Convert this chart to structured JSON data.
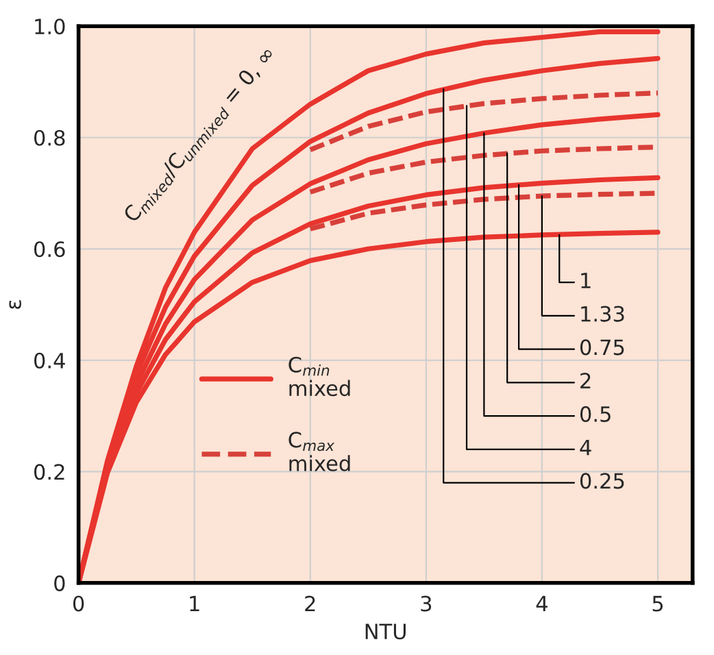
{
  "chart_data": {
    "type": "line",
    "xlabel": "NTU",
    "ylabel": "ε",
    "xlim": [
      0,
      5.3
    ],
    "ylim": [
      0,
      1.0
    ],
    "xticks": [
      0,
      1,
      2,
      3,
      4,
      5
    ],
    "yticks": [
      0,
      0.2,
      0.4,
      0.6,
      0.8,
      {
        "value": 1.0,
        "label": "1.0"
      }
    ],
    "grid": true,
    "legend": "left",
    "marker": "none",
    "x": [
      0,
      0.25,
      0.5,
      0.75,
      1,
      1.5,
      2,
      2.5,
      3,
      3.5,
      4,
      4.5,
      5
    ],
    "series": [
      {
        "name": "C$_{min}$\nmixed",
        "color": "#e8352e",
        "line_style": "solid",
        "values": [
          0,
          0.22,
          0.39,
          0.53,
          0.63,
          0.78,
          0.86,
          0.92,
          0.95,
          0.97,
          0.98,
          0.99,
          0.99
        ]
      },
      {
        "color": "#e8352e",
        "line_style": "solid",
        "values": [
          0,
          0.215,
          0.375,
          0.495,
          0.587,
          0.714,
          0.793,
          0.844,
          0.879,
          0.903,
          0.92,
          0.933,
          0.942
        ]
      },
      {
        "color": "#e8352e",
        "line_style": "solid",
        "values": [
          0,
          0.209,
          0.357,
          0.465,
          0.545,
          0.652,
          0.717,
          0.76,
          0.789,
          0.808,
          0.823,
          0.833,
          0.841
        ]
      },
      {
        "color": "#e8352e",
        "line_style": "solid",
        "values": [
          0,
          0.204,
          0.341,
          0.437,
          0.505,
          0.593,
          0.645,
          0.677,
          0.697,
          0.71,
          0.718,
          0.724,
          0.728
        ]
      },
      {
        "color": "#e8352e",
        "line_style": "solid",
        "values": [
          0,
          0.198,
          0.325,
          0.41,
          0.469,
          0.54,
          0.579,
          0.6,
          0.613,
          0.621,
          0.625,
          0.628,
          0.63
        ]
      },
      {
        "name": "C$_{max}$\nmixed",
        "color": "#d8403a",
        "line_style": "dashed",
        "x": [
          2,
          2.5,
          3,
          3.5,
          4,
          4.5,
          5
        ],
        "values": [
          0.778,
          0.82,
          0.846,
          0.861,
          0.87,
          0.876,
          0.88
        ]
      },
      {
        "color": "#d8403a",
        "line_style": "dashed",
        "x": [
          2,
          2.5,
          3,
          3.5,
          4,
          4.5,
          5
        ],
        "values": [
          0.702,
          0.736,
          0.756,
          0.768,
          0.776,
          0.78,
          0.783
        ]
      },
      {
        "color": "#d8403a",
        "line_style": "dashed",
        "x": [
          2,
          2.5,
          3,
          3.5,
          4,
          4.5,
          5
        ],
        "values": [
          0.636,
          0.664,
          0.679,
          0.689,
          0.695,
          0.698,
          0.7
        ]
      }
    ],
    "annotations": [
      "C$_{mixed}$/C$_{unmixed}$ = 0, ∞",
      {
        "text": "1",
        "x": 4.15,
        "y": 0.625
      },
      {
        "text": "1.33",
        "x": 4.0,
        "y": 0.695
      },
      {
        "text": "0.75",
        "x": 3.8,
        "y": 0.715
      },
      {
        "text": "2",
        "x": 3.7,
        "y": 0.772
      },
      {
        "text": "0.5",
        "x": 3.5,
        "y": 0.808
      },
      {
        "text": "4",
        "x": 3.35,
        "y": 0.857
      },
      {
        "text": "0.25",
        "x": 3.15,
        "y": 0.887
      }
    ]
  }
}
